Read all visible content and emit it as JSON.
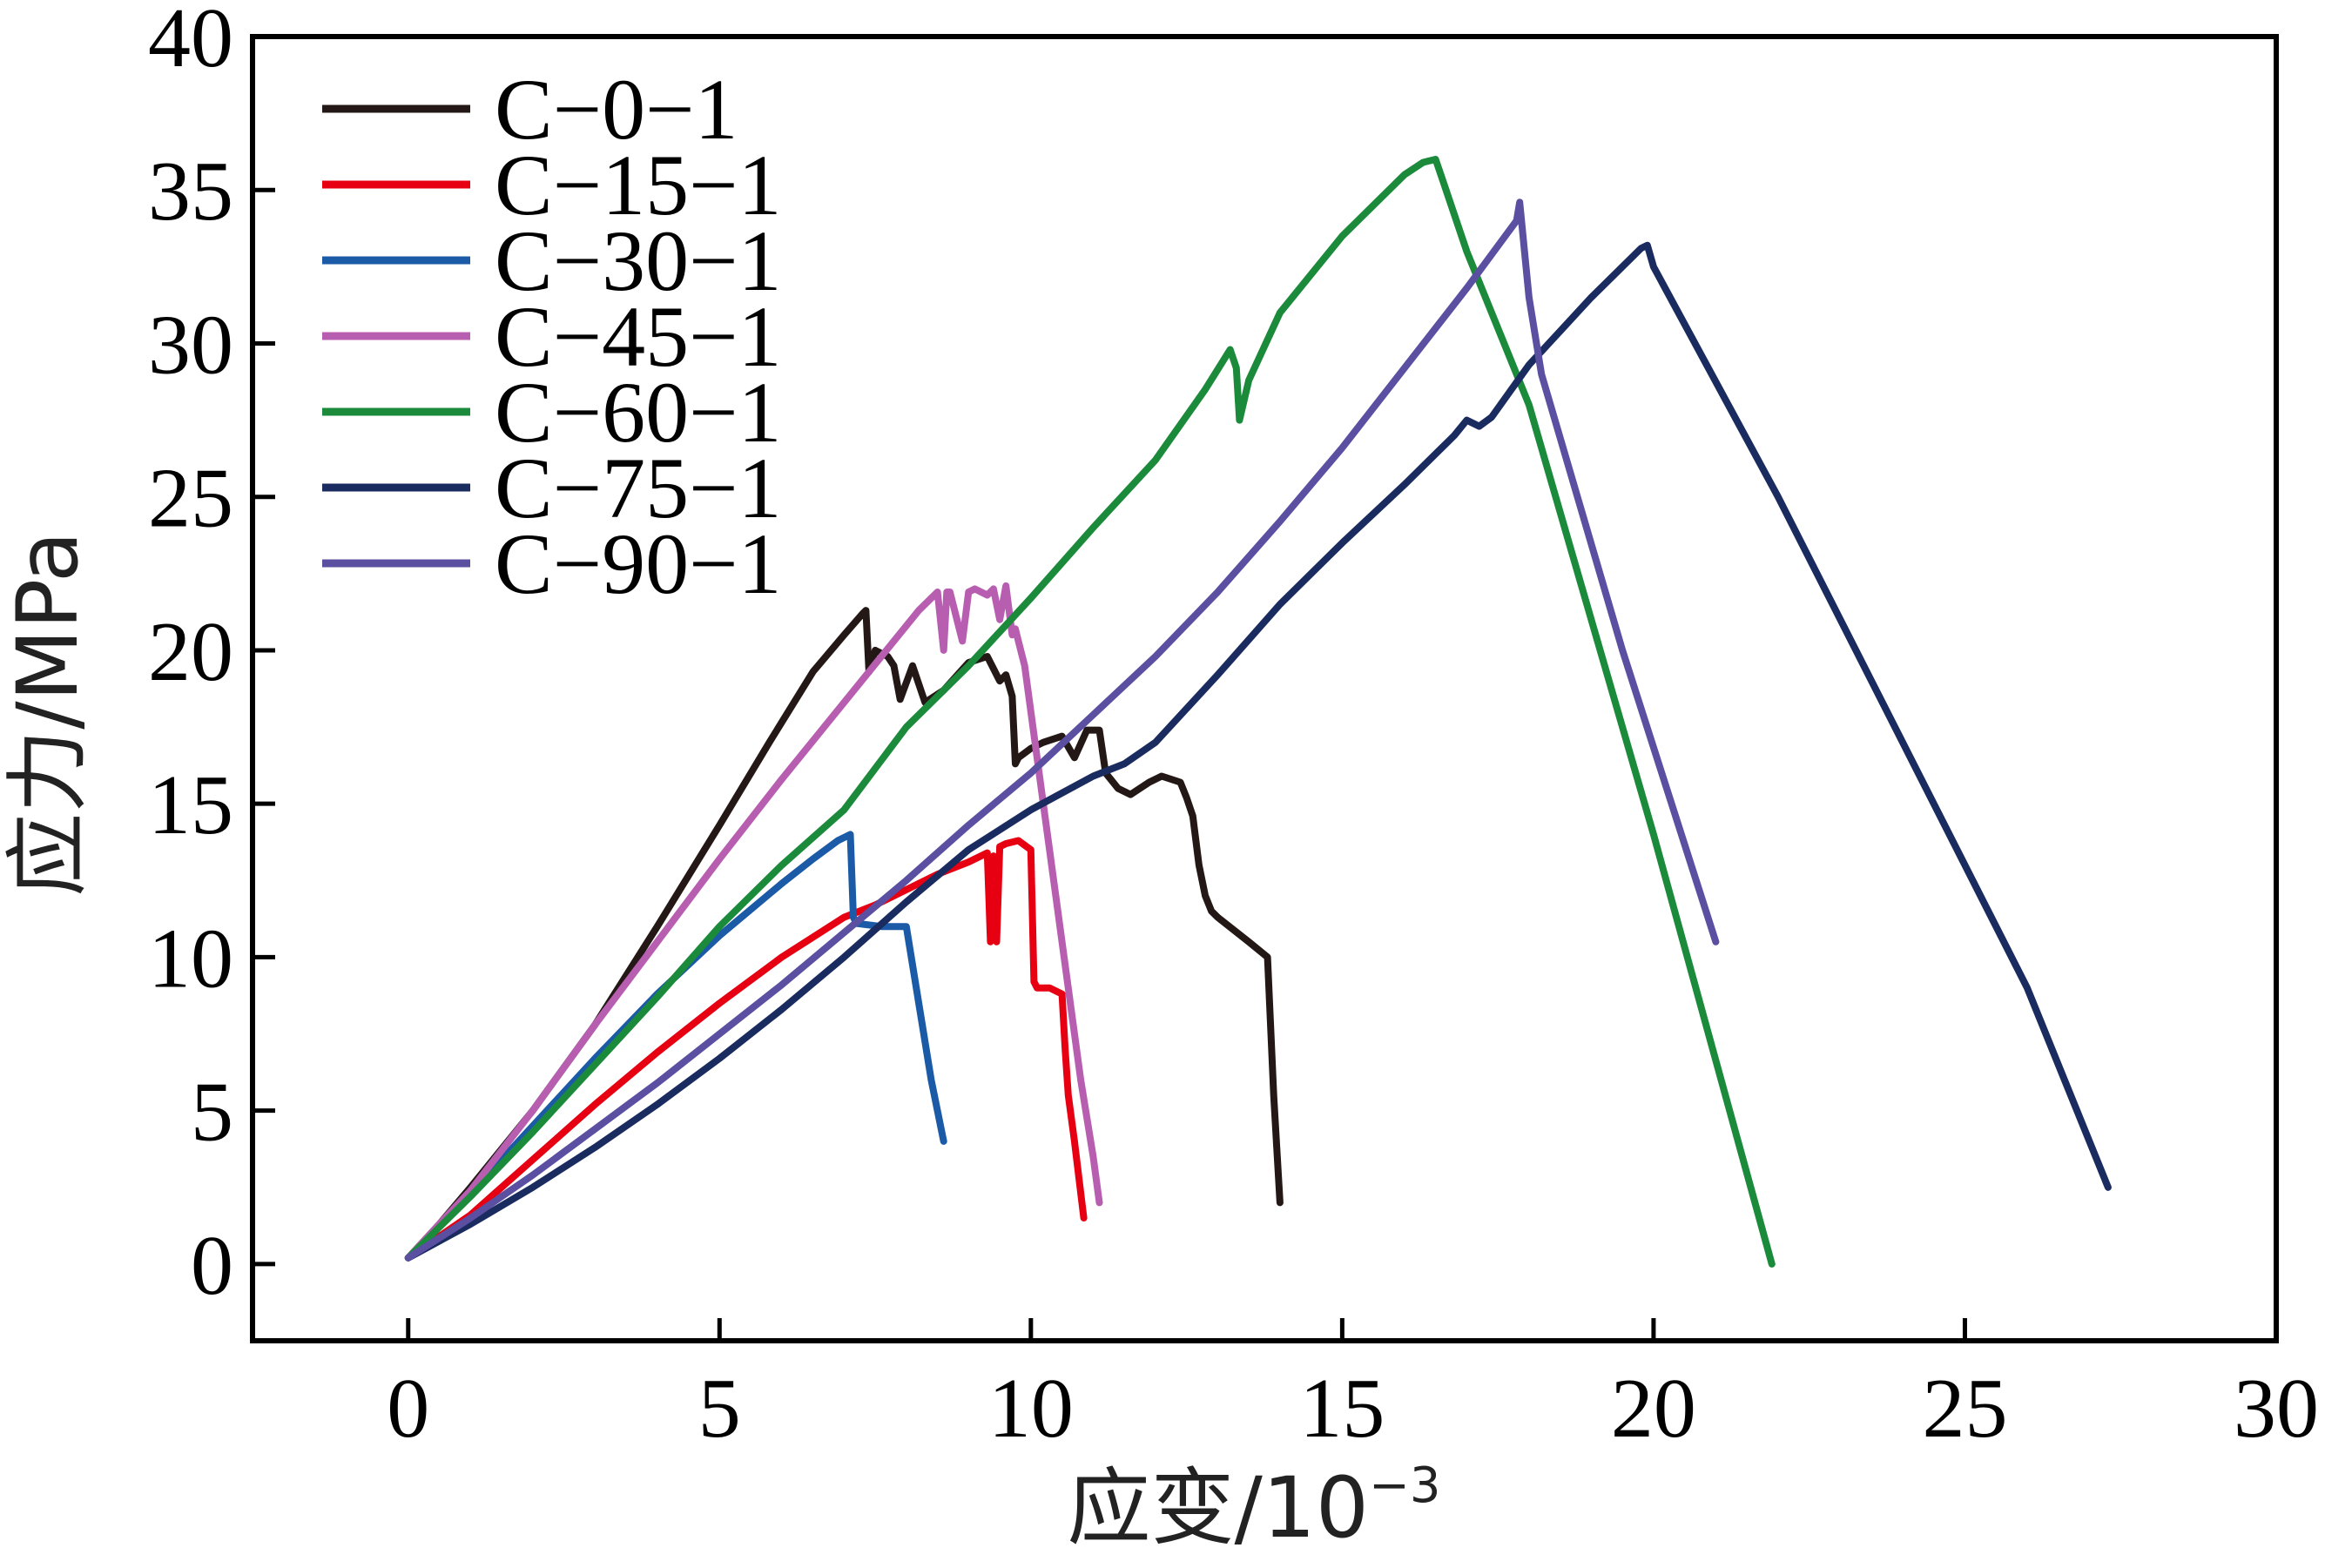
{
  "chart_data": {
    "type": "line",
    "xlabel": "应变/10",
    "xlabel_exponent": "−3",
    "ylabel": "应力/MPa",
    "xlim": [
      -2.5,
      30
    ],
    "ylim": [
      -2.5,
      40
    ],
    "x_ticks": [
      0,
      5,
      10,
      15,
      20,
      25,
      30
    ],
    "x_tick_labels": [
      "0",
      "5",
      "10",
      "15",
      "20",
      "25",
      "30"
    ],
    "y_ticks": [
      0,
      5,
      10,
      15,
      20,
      25,
      30,
      35,
      40
    ],
    "y_tick_labels": [
      "0",
      "5",
      "10",
      "15",
      "20",
      "25",
      "30",
      "35",
      "40"
    ],
    "grid": false,
    "legend_position": "top-left",
    "series": [
      {
        "name": "C−0−1",
        "color": "#231815",
        "x": [
          0,
          0.5,
          1,
          2,
          3,
          4,
          5,
          5.8,
          6.5,
          7.0,
          7.3,
          7.35,
          7.4,
          7.5,
          7.7,
          7.8,
          7.9,
          8.1,
          8.3,
          8.6,
          9.0,
          9.3,
          9.5,
          9.6,
          9.7,
          9.75,
          9.8,
          10.0,
          10.2,
          10.5,
          10.7,
          10.9,
          11.1,
          11.2,
          11.4,
          11.6,
          11.9,
          12.1,
          12.4,
          12.5,
          12.6,
          12.7,
          12.8,
          12.9,
          13.0,
          13.5,
          13.8,
          13.9,
          14.0
        ],
        "y": [
          0.2,
          1.3,
          2.5,
          5.0,
          7.8,
          11.0,
          14.3,
          17.0,
          19.3,
          20.5,
          21.2,
          21.3,
          19.3,
          20.0,
          19.8,
          19.5,
          18.4,
          19.5,
          18.3,
          18.7,
          19.6,
          19.8,
          19.0,
          19.2,
          18.5,
          16.3,
          16.5,
          16.8,
          17.0,
          17.2,
          16.5,
          17.4,
          17.4,
          16.0,
          15.5,
          15.3,
          15.7,
          15.9,
          15.7,
          15.2,
          14.6,
          13.0,
          12.0,
          11.5,
          11.3,
          10.5,
          10.0,
          5.5,
          2.0
        ]
      },
      {
        "name": "C−15−1",
        "color": "#e60012",
        "x": [
          0,
          1,
          2,
          3,
          4,
          5,
          6,
          7,
          7.5,
          8,
          8.5,
          9,
          9.3,
          9.35,
          9.4,
          9.45,
          9.5,
          9.6,
          9.8,
          10.0,
          10.05,
          10.1,
          10.3,
          10.5,
          10.55,
          10.6,
          10.7,
          10.85
        ],
        "y": [
          0.2,
          1.6,
          3.4,
          5.2,
          6.9,
          8.5,
          10.0,
          11.3,
          11.7,
          12.2,
          12.7,
          13.1,
          13.4,
          10.5,
          13.3,
          10.5,
          13.6,
          13.7,
          13.8,
          13.5,
          9.2,
          9.0,
          9.0,
          8.8,
          7.0,
          5.5,
          4.0,
          1.5
        ]
      },
      {
        "name": "C−30−1",
        "color": "#1b5aa6",
        "x": [
          0,
          1,
          2,
          3,
          4,
          5,
          6,
          6.5,
          6.9,
          7.1,
          7.15,
          7.2,
          7.6,
          8.0,
          8.2,
          8.4,
          8.6
        ],
        "y": [
          0.2,
          2.3,
          4.5,
          6.7,
          8.8,
          10.7,
          12.4,
          13.2,
          13.8,
          14.0,
          11.3,
          11.1,
          11.0,
          11.0,
          8.5,
          6.0,
          4.0
        ]
      },
      {
        "name": "C−45−1",
        "color": "#b85eb1",
        "x": [
          0,
          1,
          2,
          3,
          4,
          5,
          6,
          7,
          7.6,
          8.2,
          8.5,
          8.6,
          8.65,
          8.7,
          8.9,
          9.0,
          9.1,
          9.3,
          9.4,
          9.5,
          9.6,
          9.7,
          9.75,
          9.8,
          9.9,
          10.2,
          10.5,
          10.8,
          11.0,
          11.1
        ],
        "y": [
          0.2,
          2.4,
          5.0,
          7.8,
          10.5,
          13.2,
          15.8,
          18.3,
          19.8,
          21.3,
          21.9,
          20.0,
          21.9,
          21.9,
          20.3,
          21.9,
          22.0,
          21.8,
          22.0,
          21.0,
          22.1,
          20.5,
          20.7,
          20.3,
          19.5,
          15.0,
          10.5,
          6.0,
          3.5,
          2.0
        ]
      },
      {
        "name": "C−60−1",
        "color": "#1b8b3b",
        "x": [
          0,
          1,
          2,
          3,
          4,
          5,
          6,
          7,
          8,
          9,
          10,
          11,
          12,
          12.8,
          13.2,
          13.3,
          13.35,
          13.5,
          14,
          15,
          16,
          16.3,
          16.5,
          16.6,
          17.0,
          18.0,
          20.0,
          21.9
        ],
        "y": [
          0.2,
          2.2,
          4.3,
          6.5,
          8.7,
          11.0,
          13.0,
          14.8,
          17.5,
          19.5,
          21.7,
          24.0,
          26.2,
          28.5,
          29.8,
          29.2,
          27.5,
          28.8,
          31.0,
          33.5,
          35.5,
          35.9,
          36.0,
          35.4,
          33.0,
          28.0,
          14.0,
          0.0
        ]
      },
      {
        "name": "C−75−1",
        "color": "#1a2b5f",
        "x": [
          0,
          1,
          2,
          3,
          4,
          5,
          6,
          7,
          8,
          9,
          10,
          11,
          11.5,
          12,
          13,
          14,
          15,
          16,
          16.8,
          17.0,
          17.2,
          17.4,
          18,
          19,
          19.8,
          19.9,
          20.0,
          22,
          24,
          26,
          27.3
        ],
        "y": [
          0.2,
          1.3,
          2.5,
          3.8,
          5.2,
          6.7,
          8.3,
          10.0,
          11.8,
          13.5,
          14.8,
          15.9,
          16.3,
          17.0,
          19.2,
          21.5,
          23.5,
          25.4,
          27.0,
          27.5,
          27.3,
          27.6,
          29.3,
          31.5,
          33.1,
          33.2,
          32.5,
          25.0,
          17.0,
          9.0,
          2.5
        ]
      },
      {
        "name": "C−90−1",
        "color": "#5b4fa2",
        "x": [
          0,
          1,
          2,
          3,
          4,
          5,
          6,
          7,
          8,
          9,
          10,
          11,
          12,
          13,
          14,
          15,
          16,
          17,
          17.8,
          17.85,
          18.0,
          18.2,
          19.5,
          21.0
        ],
        "y": [
          0.2,
          1.5,
          2.9,
          4.4,
          5.9,
          7.5,
          9.1,
          10.8,
          12.5,
          14.3,
          16.0,
          17.9,
          19.8,
          21.9,
          24.2,
          26.6,
          29.2,
          31.8,
          34.0,
          34.6,
          31.5,
          29.0,
          20.0,
          10.5
        ]
      }
    ]
  }
}
